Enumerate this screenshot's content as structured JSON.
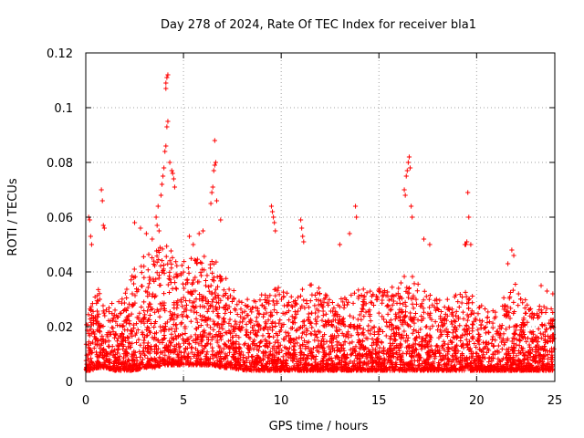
{
  "chart_data": {
    "type": "scatter",
    "title": "Day 278 of 2024, Rate Of TEC Index for receiver bla1",
    "xlabel": "GPS time / hours",
    "ylabel": "ROTI / TECUs",
    "xlim": [
      0,
      24
    ],
    "ylim": [
      0,
      0.12
    ],
    "xticks": [
      0,
      5,
      10,
      15,
      20,
      25
    ],
    "xtick_labels": [
      "0",
      "5",
      "10",
      "15",
      "20",
      "25"
    ],
    "yticks": [
      0,
      0.02,
      0.04,
      0.06,
      0.08,
      0.1,
      0.12
    ],
    "ytick_labels": [
      "0",
      "0.02",
      "0.04",
      "0.06",
      "0.08",
      "0.1",
      "0.12"
    ],
    "grid": true,
    "marker": "+",
    "series": [
      {
        "name": "ROTI",
        "color": "#ff0000",
        "envelope": {
          "x": [
            0,
            0.3,
            0.6,
            1,
            1.5,
            2,
            2.5,
            3,
            3.5,
            4,
            4.2,
            4.5,
            5,
            5.5,
            6,
            6.5,
            7,
            7.5,
            8,
            8.5,
            9,
            9.5,
            10,
            10.5,
            11,
            11.5,
            12,
            12.5,
            13,
            13.5,
            14,
            14.5,
            15,
            15.5,
            16,
            16.5,
            17,
            17.5,
            18,
            18.5,
            19,
            19.5,
            20,
            20.5,
            21,
            21.5,
            22,
            22.5,
            23,
            23.5,
            24
          ],
          "y_low": [
            0.004,
            0.004,
            0.005,
            0.005,
            0.004,
            0.004,
            0.004,
            0.005,
            0.005,
            0.006,
            0.006,
            0.006,
            0.006,
            0.006,
            0.006,
            0.006,
            0.005,
            0.005,
            0.004,
            0.004,
            0.004,
            0.004,
            0.004,
            0.004,
            0.004,
            0.004,
            0.004,
            0.004,
            0.004,
            0.004,
            0.004,
            0.004,
            0.004,
            0.004,
            0.004,
            0.004,
            0.004,
            0.004,
            0.004,
            0.004,
            0.004,
            0.004,
            0.004,
            0.004,
            0.004,
            0.004,
            0.004,
            0.004,
            0.004,
            0.004,
            0.004
          ],
          "y_high": [
            0.022,
            0.03,
            0.034,
            0.03,
            0.028,
            0.032,
            0.042,
            0.046,
            0.048,
            0.05,
            0.05,
            0.046,
            0.044,
            0.046,
            0.046,
            0.046,
            0.04,
            0.034,
            0.03,
            0.03,
            0.032,
            0.036,
            0.034,
            0.032,
            0.034,
            0.036,
            0.034,
            0.03,
            0.03,
            0.032,
            0.034,
            0.034,
            0.034,
            0.034,
            0.036,
            0.04,
            0.036,
            0.032,
            0.03,
            0.03,
            0.032,
            0.034,
            0.03,
            0.026,
            0.026,
            0.032,
            0.036,
            0.03,
            0.028,
            0.028,
            0.026
          ]
        },
        "outliers": [
          [
            0.15,
            0.06
          ],
          [
            0.2,
            0.059
          ],
          [
            0.25,
            0.053
          ],
          [
            0.3,
            0.05
          ],
          [
            0.8,
            0.07
          ],
          [
            0.85,
            0.066
          ],
          [
            0.9,
            0.057
          ],
          [
            0.95,
            0.056
          ],
          [
            2.5,
            0.058
          ],
          [
            2.8,
            0.056
          ],
          [
            3.1,
            0.054
          ],
          [
            3.4,
            0.052
          ],
          [
            3.6,
            0.06
          ],
          [
            3.65,
            0.057
          ],
          [
            3.7,
            0.064
          ],
          [
            3.75,
            0.055
          ],
          [
            3.85,
            0.068
          ],
          [
            3.9,
            0.072
          ],
          [
            3.95,
            0.075
          ],
          [
            4.0,
            0.078
          ],
          [
            4.05,
            0.084
          ],
          [
            4.1,
            0.086
          ],
          [
            4.15,
            0.093
          ],
          [
            4.2,
            0.095
          ],
          [
            4.1,
            0.109
          ],
          [
            4.15,
            0.111
          ],
          [
            4.2,
            0.112
          ],
          [
            4.1,
            0.107
          ],
          [
            4.3,
            0.08
          ],
          [
            4.4,
            0.077
          ],
          [
            4.45,
            0.076
          ],
          [
            4.5,
            0.074
          ],
          [
            4.55,
            0.071
          ],
          [
            5.3,
            0.053
          ],
          [
            5.5,
            0.05
          ],
          [
            5.8,
            0.054
          ],
          [
            6.0,
            0.055
          ],
          [
            6.4,
            0.065
          ],
          [
            6.45,
            0.069
          ],
          [
            6.5,
            0.071
          ],
          [
            6.55,
            0.077
          ],
          [
            6.6,
            0.079
          ],
          [
            6.65,
            0.08
          ],
          [
            6.6,
            0.088
          ],
          [
            6.7,
            0.066
          ],
          [
            6.9,
            0.059
          ],
          [
            9.5,
            0.064
          ],
          [
            9.55,
            0.062
          ],
          [
            9.6,
            0.06
          ],
          [
            9.65,
            0.058
          ],
          [
            9.7,
            0.055
          ],
          [
            11.0,
            0.059
          ],
          [
            11.05,
            0.056
          ],
          [
            11.1,
            0.053
          ],
          [
            11.15,
            0.051
          ],
          [
            13.0,
            0.05
          ],
          [
            13.5,
            0.054
          ],
          [
            13.8,
            0.064
          ],
          [
            13.85,
            0.06
          ],
          [
            16.3,
            0.07
          ],
          [
            16.35,
            0.068
          ],
          [
            16.4,
            0.075
          ],
          [
            16.45,
            0.077
          ],
          [
            16.5,
            0.08
          ],
          [
            16.55,
            0.082
          ],
          [
            16.6,
            0.078
          ],
          [
            16.65,
            0.064
          ],
          [
            16.7,
            0.06
          ],
          [
            17.3,
            0.052
          ],
          [
            17.6,
            0.05
          ],
          [
            19.4,
            0.05
          ],
          [
            19.45,
            0.05
          ],
          [
            19.5,
            0.051
          ],
          [
            19.55,
            0.069
          ],
          [
            19.6,
            0.06
          ],
          [
            19.7,
            0.05
          ],
          [
            21.8,
            0.048
          ],
          [
            21.9,
            0.046
          ],
          [
            21.6,
            0.043
          ],
          [
            23.3,
            0.035
          ],
          [
            23.6,
            0.033
          ],
          [
            23.9,
            0.032
          ]
        ]
      }
    ]
  }
}
